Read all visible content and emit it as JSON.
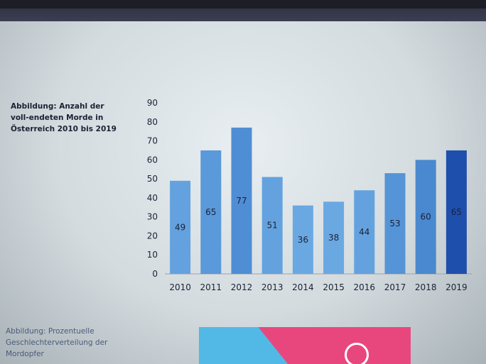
{
  "caption_top": "Abbildung: Anzahl der voll-endeten Morde in Österreich 2010 bis 2019",
  "caption_bottom": "Abbildung: Prozentuelle Geschlechterverteilung der Mordopfer",
  "chart_data": {
    "type": "bar",
    "title": "",
    "xlabel": "",
    "ylabel": "",
    "categories": [
      "2010",
      "2011",
      "2012",
      "2013",
      "2014",
      "2015",
      "2016",
      "2017",
      "2018",
      "2019"
    ],
    "values": [
      49,
      65,
      77,
      51,
      36,
      38,
      44,
      53,
      60,
      65
    ],
    "ylim": [
      0,
      90
    ],
    "yticks": [
      0,
      10,
      20,
      30,
      40,
      50,
      60,
      70,
      80,
      90
    ],
    "grid": false,
    "bar_colors": [
      "#63a2df",
      "#5a99da",
      "#4f8ed4",
      "#63a2df",
      "#6aa8e2",
      "#6aa8e2",
      "#63a2df",
      "#5595d7",
      "#4a89cf",
      "#1f4fad"
    ]
  },
  "colors": {
    "bottom_blue": "#52b9e6",
    "bottom_pink": "#e8477e"
  }
}
